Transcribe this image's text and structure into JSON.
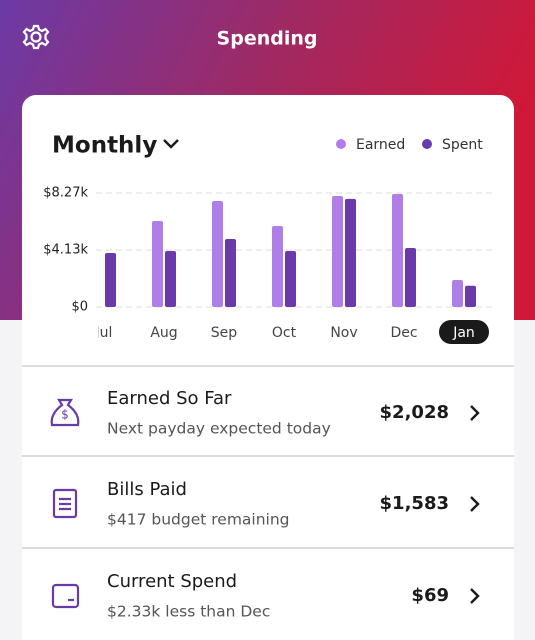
{
  "header": {
    "title": "Spending"
  },
  "chart_card": {
    "period": "Monthly"
  },
  "chart_data": {
    "type": "bar",
    "categories": [
      "Jul",
      "Aug",
      "Sep",
      "Oct",
      "Nov",
      "Dec",
      "Jan"
    ],
    "series": [
      {
        "name": "Earned",
        "color": "#b07ee8",
        "values": [
          null,
          6240,
          7690,
          5880,
          8050,
          8200,
          1960
        ]
      },
      {
        "name": "Spent",
        "color": "#6a3ba8",
        "values": [
          3920,
          4060,
          4930,
          4060,
          7840,
          4280,
          1540
        ]
      }
    ],
    "ylim": [
      0,
      8270
    ],
    "yticks": [
      {
        "value": 0,
        "label": "$0"
      },
      {
        "value": 4130,
        "label": "$4.13k"
      },
      {
        "value": 8270,
        "label": "$8.27k"
      }
    ],
    "grid": true,
    "selected_index": 6
  },
  "rows": [
    {
      "title": "Earned So Far",
      "subtitle": "Next payday expected today",
      "amount": "$2,028"
    },
    {
      "title": "Bills Paid",
      "subtitle": "$417 budget remaining",
      "amount": "$1,583"
    },
    {
      "title": "Current Spend",
      "subtitle": "$2.33k less than Dec",
      "amount": "$69"
    }
  ]
}
